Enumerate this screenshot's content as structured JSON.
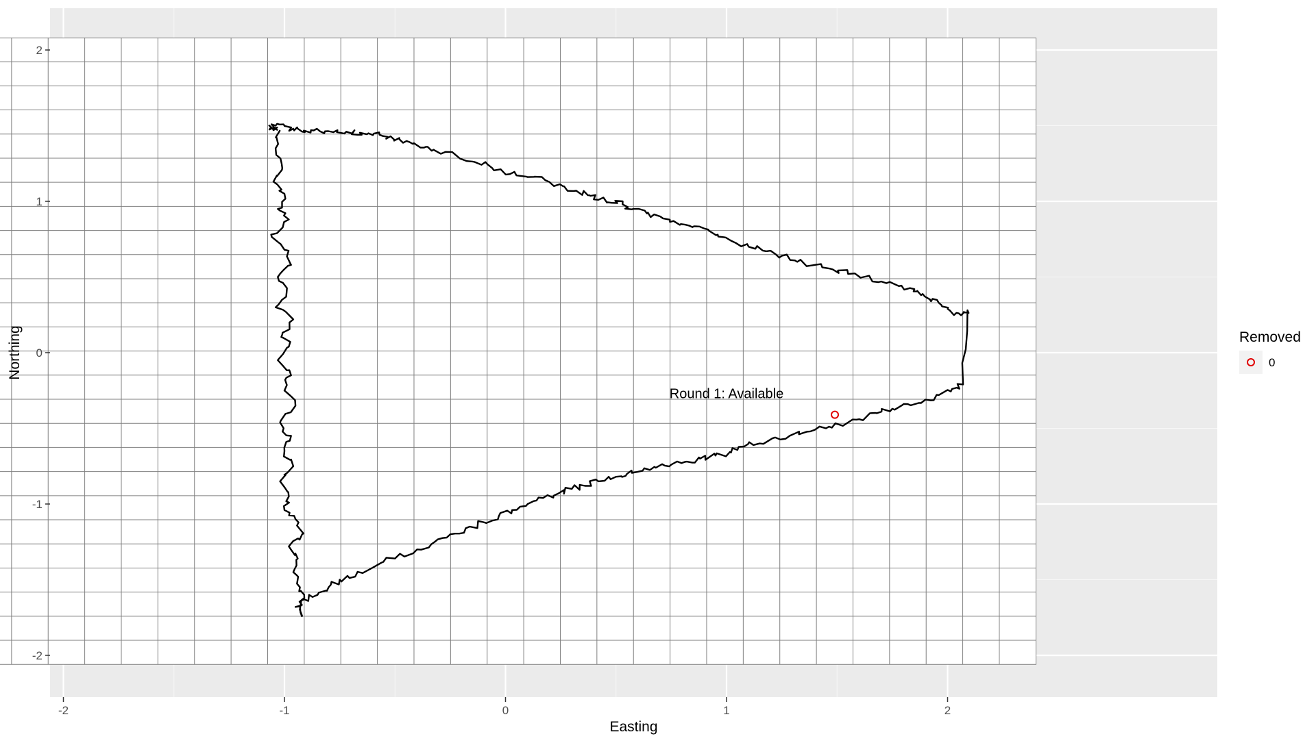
{
  "chart_data": {
    "type": "line",
    "title": "",
    "xlabel": "Easting",
    "ylabel": "Northing",
    "xlim": [
      -2.5,
      2.4
    ],
    "ylim": [
      -2.2,
      2.1
    ],
    "x_ticks": [
      -2,
      -1,
      0,
      1,
      2
    ],
    "x_tick_labels": [
      "-2",
      "-1",
      "0",
      "1",
      "2"
    ],
    "y_ticks": [
      2,
      1,
      0,
      -1,
      -2
    ],
    "y_tick_labels": [
      "2",
      "1",
      "0",
      "-1",
      "-2"
    ],
    "grid": true,
    "background": "#ebebeb",
    "cell_grid": {
      "x_from": -2.4,
      "x_to": 2.4,
      "x_step": 0.1655,
      "y_from": -2.06,
      "y_to": 2.08,
      "y_step": 0.1593
    },
    "track_color": "#000000",
    "track": {
      "x": [
        -1.02,
        -1.04,
        -1.01,
        -1.05,
        -1.0,
        -1.03,
        -0.98,
        -1.06,
        -1.0,
        -0.97,
        -1.03,
        -0.99,
        -1.04,
        -0.96,
        -1.01,
        -0.98,
        -1.03,
        -0.97,
        -1.0,
        -0.95,
        -1.02,
        -0.97,
        -1.0,
        -0.96,
        -1.02,
        -0.98,
        -1.0,
        -0.95,
        -0.92,
        -0.98,
        -0.94,
        -0.96,
        -0.93,
        -0.91,
        -0.95,
        -0.92,
        -0.91,
        -0.85,
        -0.8,
        -0.75,
        -0.68,
        -0.6,
        -0.5,
        -0.4,
        -0.32,
        -0.25,
        -0.18,
        -0.1,
        -0.03,
        0.03,
        0.1,
        0.17,
        0.24,
        0.3,
        0.36,
        0.42,
        0.5,
        0.55,
        0.62,
        0.68,
        0.75,
        0.82,
        0.88,
        0.95,
        1.02,
        1.08,
        1.15,
        1.22,
        1.3,
        1.38,
        1.45,
        1.52,
        1.6,
        1.68,
        1.75,
        1.82,
        1.9,
        1.96,
        2.02,
        2.07,
        2.09,
        2.07,
        2.03,
        2.0,
        1.96,
        1.92,
        1.88,
        1.85,
        1.78,
        1.7,
        1.62,
        1.55,
        1.48,
        1.4,
        1.32,
        1.25,
        1.18,
        1.1,
        1.02,
        0.96,
        0.9,
        0.83,
        0.76,
        0.7,
        0.64,
        0.58,
        0.53,
        0.48,
        0.42,
        0.38,
        0.32,
        0.26,
        0.18,
        0.1,
        0.02,
        -0.06,
        -0.14,
        -0.22,
        -0.3,
        -0.36,
        -0.42,
        -0.48,
        -0.52,
        -0.57,
        -0.62,
        -0.67,
        -0.72,
        -0.76,
        -0.82,
        -0.88,
        -0.92,
        -0.96,
        -1.0,
        -1.04,
        -1.06,
        -1.05,
        -1.03
      ],
      "y": [
        1.47,
        1.35,
        1.22,
        1.13,
        1.05,
        0.95,
        0.88,
        0.78,
        0.68,
        0.58,
        0.5,
        0.4,
        0.3,
        0.22,
        0.12,
        0.04,
        -0.05,
        -0.15,
        -0.25,
        -0.35,
        -0.46,
        -0.55,
        -0.65,
        -0.75,
        -0.85,
        -0.95,
        -1.04,
        -1.1,
        -1.2,
        -1.28,
        -1.36,
        -1.45,
        -1.55,
        -1.62,
        -1.68,
        -1.74,
        -1.63,
        -1.6,
        -1.55,
        -1.5,
        -1.48,
        -1.42,
        -1.36,
        -1.3,
        -1.25,
        -1.2,
        -1.16,
        -1.12,
        -1.08,
        -1.04,
        -1.0,
        -0.96,
        -0.93,
        -0.9,
        -0.88,
        -0.85,
        -0.82,
        -0.8,
        -0.78,
        -0.76,
        -0.74,
        -0.72,
        -0.7,
        -0.68,
        -0.66,
        -0.62,
        -0.6,
        -0.56,
        -0.54,
        -0.52,
        -0.5,
        -0.48,
        -0.44,
        -0.4,
        -0.37,
        -0.34,
        -0.31,
        -0.28,
        -0.24,
        -0.21,
        0.28,
        0.26,
        0.25,
        0.29,
        0.33,
        0.35,
        0.38,
        0.42,
        0.44,
        0.47,
        0.5,
        0.52,
        0.55,
        0.58,
        0.6,
        0.64,
        0.67,
        0.7,
        0.74,
        0.78,
        0.82,
        0.84,
        0.87,
        0.9,
        0.92,
        0.95,
        0.98,
        0.99,
        1.01,
        1.04,
        1.07,
        1.1,
        1.14,
        1.16,
        1.18,
        1.22,
        1.26,
        1.3,
        1.32,
        1.36,
        1.38,
        1.41,
        1.43,
        1.44,
        1.45,
        1.44,
        1.46,
        1.47,
        1.45,
        1.47,
        1.46,
        1.48,
        1.5,
        1.5,
        1.49,
        1.47,
        1.47
      ]
    },
    "annotation": {
      "text": "Round 1: Available",
      "x": 1.0,
      "y": -0.3
    },
    "point": {
      "x": 1.49,
      "y": -0.41,
      "color": "#e00000"
    },
    "legend": {
      "title": "Removed",
      "label": "0",
      "position": "right"
    }
  }
}
